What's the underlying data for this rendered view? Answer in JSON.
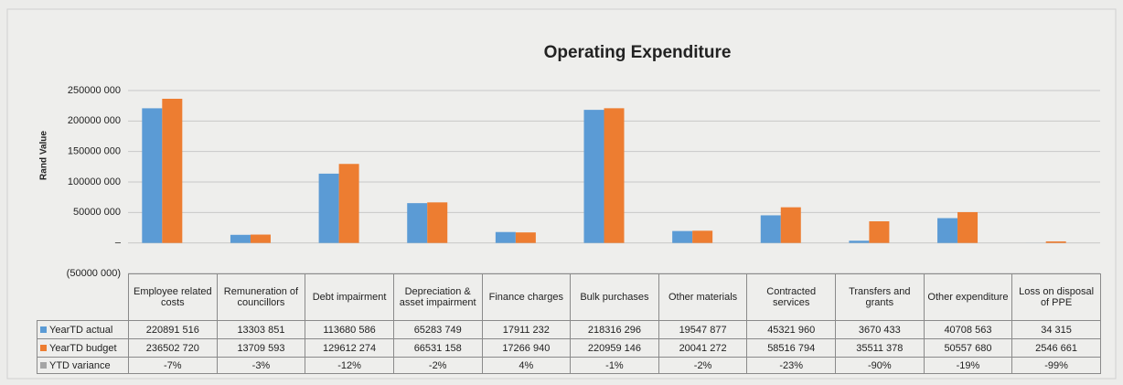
{
  "chart_data": {
    "type": "bar",
    "title": "Operating Expenditure",
    "y_label": "Rand Value",
    "categories": [
      "Employee related costs",
      "Remuneration of councillors",
      "Debt impairment",
      "Depreciation & asset impairment",
      "Finance charges",
      "Bulk purchases",
      "Other materials",
      "Contracted services",
      "Transfers and grants",
      "Other expenditure",
      "Loss on disposal of PPE"
    ],
    "series": [
      {
        "name": "YearTD actual",
        "color": "#5b9bd5",
        "values": [
          220891516,
          13303851,
          113680586,
          65283749,
          17911232,
          218316296,
          19547877,
          45321960,
          3670433,
          40708563,
          34315
        ],
        "value_labels": [
          "220891 516",
          "13303 851",
          "113680 586",
          "65283 749",
          "17911 232",
          "218316 296",
          "19547 877",
          "45321 960",
          "3670 433",
          "40708 563",
          "34 315"
        ]
      },
      {
        "name": "YearTD budget",
        "color": "#ed7d31",
        "values": [
          236502720,
          13709593,
          129612274,
          66531158,
          17266940,
          220959146,
          20041272,
          58516794,
          35511378,
          50557680,
          2546661
        ],
        "value_labels": [
          "236502 720",
          "13709 593",
          "129612 274",
          "66531 158",
          "17266 940",
          "220959 146",
          "20041 272",
          "58516 794",
          "35511 378",
          "50557 680",
          "2546 661"
        ]
      },
      {
        "name": "YTD variance",
        "color": "#a5a5a5",
        "values": [
          -7,
          -3,
          -12,
          -2,
          4,
          -1,
          -2,
          -23,
          -90,
          -19,
          -99
        ],
        "value_labels": [
          "-7%",
          "-3%",
          "-12%",
          "-2%",
          "4%",
          "-1%",
          "-2%",
          "-23%",
          "-90%",
          "-19%",
          "-99%"
        ]
      }
    ],
    "ylim": [
      -50000000,
      250000000
    ],
    "yticks": [
      {
        "value": -50000000,
        "label": "(50000 000)"
      },
      {
        "value": 0,
        "label": "–"
      },
      {
        "value": 50000000,
        "label": "50000 000"
      },
      {
        "value": 100000000,
        "label": "100000 000"
      },
      {
        "value": 150000000,
        "label": "150000 000"
      },
      {
        "value": 200000000,
        "label": "200000 000"
      },
      {
        "value": 250000000,
        "label": "250000 000"
      }
    ],
    "grid": true
  }
}
